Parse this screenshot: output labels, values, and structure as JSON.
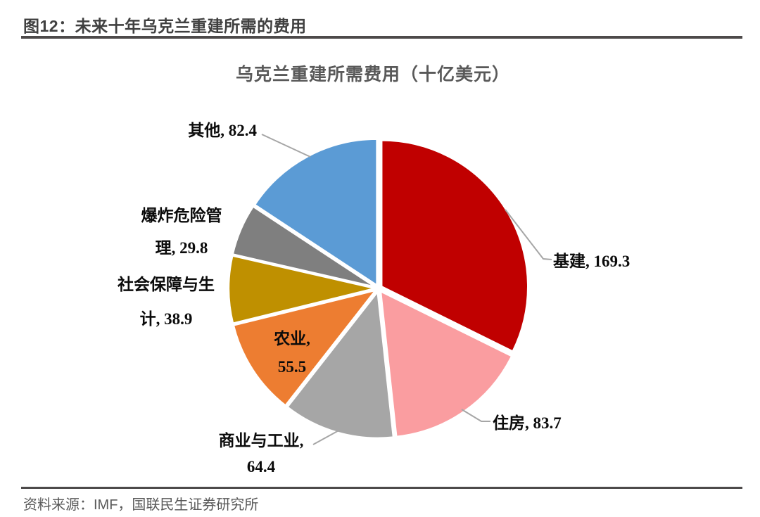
{
  "header": {
    "figure_label": "图12：未来十年乌克兰重建所需的费用"
  },
  "source": {
    "text": "资料来源：IMF，国联民生证券研究所"
  },
  "chart_data": {
    "type": "pie",
    "title": "乌克兰重建所需费用（十亿美元）",
    "start_angle": "top",
    "direction": "clockwise",
    "legend": "none",
    "label_style": "external-callouts",
    "leader_line_color": "#a6a6a6",
    "series": [
      {
        "id": "infrastructure",
        "name": "基建",
        "value": 169.3,
        "color": "#c00000"
      },
      {
        "id": "housing",
        "name": "住房",
        "value": 83.7,
        "color": "#fa9da0"
      },
      {
        "id": "commerce-industry",
        "name": "商业与工业",
        "value": 64.4,
        "color": "#a6a6a6"
      },
      {
        "id": "agriculture",
        "name": "农业",
        "value": 55.5,
        "color": "#ed7d31"
      },
      {
        "id": "social-protection",
        "name": "社会保障与生计",
        "value": 38.9,
        "color": "#bf9000"
      },
      {
        "id": "explosive-hazard",
        "name": "爆炸危险管理",
        "value": 29.8,
        "color": "#7f7f7f"
      },
      {
        "id": "other",
        "name": "其他",
        "value": 82.4,
        "color": "#5b9bd5"
      }
    ],
    "callouts": [
      {
        "id": "infrastructure",
        "lines": [
          "基建, 169.3"
        ]
      },
      {
        "id": "housing",
        "lines": [
          "住房, 83.7"
        ]
      },
      {
        "id": "commerce-industry",
        "lines": [
          "商业与工业,",
          "64.4"
        ]
      },
      {
        "id": "agriculture",
        "lines": [
          "农业,",
          "55.5"
        ]
      },
      {
        "id": "social-protection",
        "lines": [
          "社会保障与生",
          "计, 38.9"
        ]
      },
      {
        "id": "explosive-hazard",
        "lines": [
          "爆炸危险管",
          "理, 29.8"
        ]
      },
      {
        "id": "other",
        "lines": [
          "其他, 82.4"
        ]
      }
    ]
  }
}
